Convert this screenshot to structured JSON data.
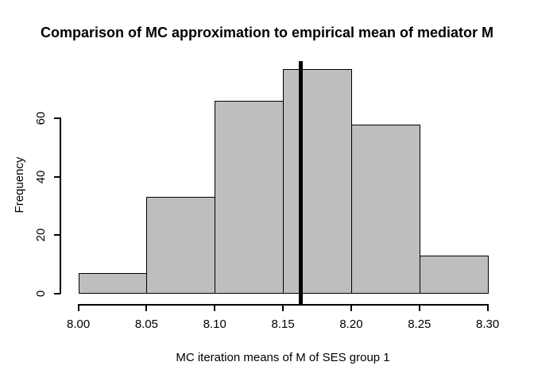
{
  "title": "Comparison of MC approximation to empirical mean of mediator M",
  "chart_data": {
    "type": "bar",
    "subtype": "histogram",
    "title": "Comparison of MC approximation to empirical mean of mediator M",
    "xlabel": "MC iteration means of M of SES group 1",
    "ylabel": "Frequency",
    "bin_edges": [
      8.0,
      8.05,
      8.1,
      8.15,
      8.2,
      8.25,
      8.3
    ],
    "frequencies": [
      7,
      33,
      66,
      77,
      58,
      13
    ],
    "x_tick_values": [
      8.0,
      8.05,
      8.1,
      8.15,
      8.2,
      8.25,
      8.3
    ],
    "x_tick_labels": [
      "8.00",
      "8.05",
      "8.10",
      "8.15",
      "8.20",
      "8.25",
      "8.30"
    ],
    "y_tick_values": [
      0,
      20,
      40,
      60
    ],
    "y_tick_labels": [
      "0",
      "20",
      "40",
      "60"
    ],
    "xlim": [
      8.0,
      8.3
    ],
    "ylim": [
      0,
      77
    ],
    "mean_line_value": 8.163,
    "grid": false,
    "legend": null,
    "colors": {
      "bar_fill": "#BEBEBE",
      "bar_border": "#000000",
      "mean_line": "#000000",
      "axis": "#000000",
      "text": "#000000",
      "background": "#FFFFFF"
    }
  }
}
